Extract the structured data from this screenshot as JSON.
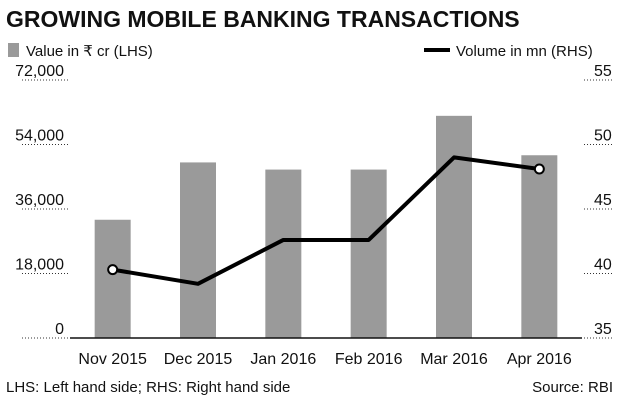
{
  "chart_data": {
    "type": "bar",
    "title": "GROWING MOBILE BANKING TRANSACTIONS",
    "categories": [
      "Nov 2015",
      "Dec 2015",
      "Jan 2016",
      "Feb 2016",
      "Mar 2016",
      "Apr 2016"
    ],
    "series": [
      {
        "name": "Value in ₹ cr (LHS)",
        "type": "bar",
        "axis": "left",
        "color": "#9a9a9a",
        "values": [
          33000,
          49000,
          47000,
          47000,
          62000,
          51000
        ]
      },
      {
        "name": "Volume in mn (RHS)",
        "type": "line",
        "axis": "right",
        "color": "#000000",
        "values": [
          40.3,
          39.2,
          42.6,
          42.6,
          49.0,
          48.1
        ]
      }
    ],
    "left_axis": {
      "ylim": [
        0,
        72000
      ],
      "ticks": [
        "0",
        "18,000",
        "36,000",
        "54,000",
        "72,000"
      ],
      "tick_values": [
        0,
        18000,
        36000,
        54000,
        72000
      ]
    },
    "right_axis": {
      "ylim": [
        35,
        55
      ],
      "ticks": [
        "35",
        "40",
        "45",
        "50",
        "55"
      ],
      "tick_values": [
        35,
        40,
        45,
        50,
        55
      ]
    },
    "grid": false,
    "legend_position": "top",
    "footnote": "LHS: Left hand side; RHS: Right hand side",
    "source": "Source: RBI"
  }
}
